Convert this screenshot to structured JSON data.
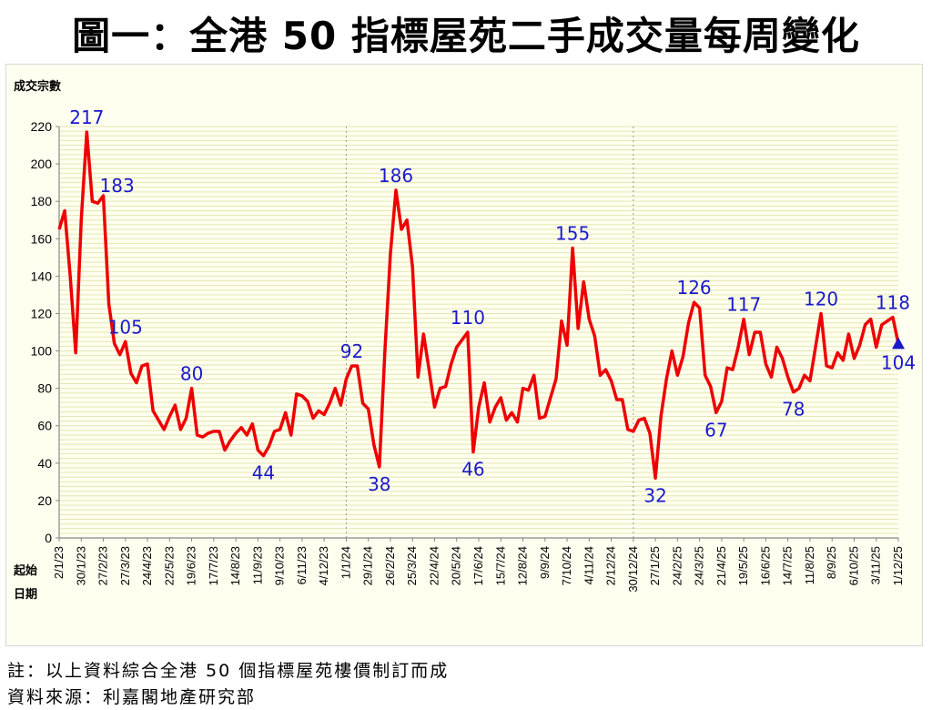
{
  "title": "圖一：全港 50 指標屋苑二手成交量每周變化",
  "note": "註：以上資料綜合全港 50 個指標屋苑樓價制訂而成",
  "source": "資料來源：利嘉閣地產研究部",
  "colors": {
    "line": "#ee0000",
    "label": "#1a1acc",
    "plot_bg": "#fffff0",
    "grid": "#e6e6b0"
  },
  "chart_data": {
    "type": "line",
    "ylabel": "成交宗數",
    "xlabel": "起始日期",
    "ylim": [
      0,
      220
    ],
    "yticks": [
      0,
      20,
      40,
      60,
      80,
      100,
      120,
      140,
      160,
      180,
      200,
      220
    ],
    "grid": true,
    "year_dividers": [
      "1/1/24",
      "30/12/24"
    ],
    "x_tick_labels": [
      "2/1/23",
      "30/1/23",
      "27/2/23",
      "27/3/23",
      "24/4/23",
      "22/5/23",
      "19/6/23",
      "17/7/23",
      "14/8/23",
      "11/9/23",
      "9/10/23",
      "6/11/23",
      "4/12/23",
      "1/1/24",
      "29/1/24",
      "26/2/24",
      "25/3/24",
      "22/4/24",
      "20/5/24",
      "17/6/24",
      "15/7/24",
      "12/8/24",
      "9/9/24",
      "7/10/24",
      "4/11/24",
      "2/12/24",
      "30/12/24",
      "27/1/25",
      "24/2/25",
      "24/3/25",
      "21/4/25",
      "19/5/25",
      "16/6/25",
      "14/7/25",
      "11/8/25",
      "8/9/25",
      "6/10/25",
      "3/11/25",
      "1/12/25"
    ],
    "values": [
      165,
      175,
      140,
      99,
      170,
      217,
      180,
      179,
      183,
      125,
      104,
      98,
      105,
      88,
      83,
      92,
      93,
      68,
      63,
      58,
      65,
      71,
      58,
      64,
      80,
      55,
      54,
      56,
      57,
      57,
      47,
      52,
      56,
      59,
      55,
      61,
      47,
      44,
      49,
      57,
      58,
      67,
      55,
      77,
      76,
      73,
      64,
      68,
      66,
      72,
      80,
      71,
      85,
      92,
      92,
      72,
      69,
      50,
      38,
      100,
      152,
      186,
      165,
      170,
      145,
      86,
      109,
      90,
      70,
      80,
      81,
      93,
      102,
      106,
      110,
      46,
      70,
      83,
      62,
      70,
      75,
      63,
      67,
      62,
      80,
      79,
      87,
      64,
      65,
      75,
      85,
      116,
      103,
      155,
      112,
      137,
      117,
      108,
      87,
      90,
      84,
      74,
      74,
      58,
      57,
      63,
      64,
      56,
      32,
      65,
      85,
      100,
      87,
      97,
      115,
      126,
      123,
      87,
      81,
      67,
      73,
      91,
      90,
      102,
      117,
      98,
      110,
      110,
      93,
      86,
      102,
      96,
      86,
      78,
      80,
      87,
      84,
      102,
      120,
      92,
      91,
      99,
      95,
      109,
      96,
      103,
      114,
      117,
      102,
      114,
      116,
      118,
      104
    ],
    "annotations": [
      {
        "index": 5,
        "text": "217"
      },
      {
        "index": 8,
        "text": "183"
      },
      {
        "index": 12,
        "text": "105"
      },
      {
        "index": 24,
        "text": "80"
      },
      {
        "index": 37,
        "text": "44"
      },
      {
        "index": 53,
        "text": "92"
      },
      {
        "index": 58,
        "text": "38"
      },
      {
        "index": 61,
        "text": "186"
      },
      {
        "index": 74,
        "text": "110"
      },
      {
        "index": 75,
        "text": "46"
      },
      {
        "index": 93,
        "text": "155"
      },
      {
        "index": 108,
        "text": "32"
      },
      {
        "index": 115,
        "text": "126"
      },
      {
        "index": 119,
        "text": "67"
      },
      {
        "index": 124,
        "text": "117"
      },
      {
        "index": 133,
        "text": "78"
      },
      {
        "index": 138,
        "text": "120"
      },
      {
        "index": 151,
        "text": "118"
      },
      {
        "index": 152,
        "text": "104"
      }
    ]
  }
}
